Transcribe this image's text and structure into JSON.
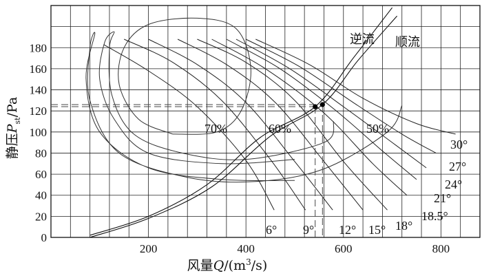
{
  "chart_data": {
    "type": "line",
    "xlabel_prefix": "风量",
    "xlabel_var": "Q",
    "xlabel_unit_pre": "/(m",
    "xlabel_unit_sup": "3",
    "xlabel_unit_post": "/s)",
    "ylabel_prefix": "静压",
    "ylabel_var": "P",
    "ylabel_sub": "st",
    "ylabel_unit": "/Pa",
    "xlim": [
      0,
      880
    ],
    "ylim": [
      0,
      220
    ],
    "x_ticks": [
      200,
      400,
      600,
      800
    ],
    "x_tick_labels": [
      "200",
      "400",
      "600",
      "800"
    ],
    "y_ticks": [
      0,
      20,
      40,
      60,
      80,
      100,
      120,
      140,
      160,
      180
    ],
    "y_tick_labels": [
      "0",
      "20",
      "40",
      "60",
      "80",
      "100",
      "120",
      "140",
      "160",
      "180"
    ],
    "grid": true,
    "blade_angle_curves": [
      {
        "name": "6°",
        "points": [
          [
            108,
            183
          ],
          [
            200,
            158
          ],
          [
            300,
            124
          ],
          [
            400,
            73
          ],
          [
            458,
            26
          ]
        ]
      },
      {
        "name": "9°",
        "points": [
          [
            150,
            188
          ],
          [
            250,
            166
          ],
          [
            350,
            130
          ],
          [
            450,
            74
          ],
          [
            522,
            26
          ]
        ]
      },
      {
        "name": "12°",
        "points": [
          [
            200,
            188
          ],
          [
            300,
            164
          ],
          [
            400,
            128
          ],
          [
            500,
            72
          ],
          [
            578,
            26
          ]
        ]
      },
      {
        "name": "15°",
        "points": [
          [
            260,
            188
          ],
          [
            360,
            164
          ],
          [
            460,
            128
          ],
          [
            560,
            72
          ],
          [
            640,
            26
          ]
        ]
      },
      {
        "name": "18°",
        "points": [
          [
            300,
            188
          ],
          [
            400,
            166
          ],
          [
            500,
            130
          ],
          [
            600,
            72
          ],
          [
            690,
            26
          ]
        ]
      },
      {
        "name": "18.5°",
        "points": [
          [
            330,
            188
          ],
          [
            440,
            160
          ],
          [
            560,
            118
          ],
          [
            660,
            70
          ],
          [
            730,
            40
          ]
        ]
      },
      {
        "name": "21°",
        "points": [
          [
            360,
            188
          ],
          [
            470,
            160
          ],
          [
            580,
            122
          ],
          [
            680,
            82
          ],
          [
            750,
            55
          ]
        ]
      },
      {
        "name": "24°",
        "points": [
          [
            380,
            188
          ],
          [
            490,
            160
          ],
          [
            600,
            124
          ],
          [
            700,
            90
          ],
          [
            770,
            66
          ]
        ]
      },
      {
        "name": "27°",
        "points": [
          [
            400,
            188
          ],
          [
            510,
            162
          ],
          [
            620,
            128
          ],
          [
            720,
            98
          ],
          [
            790,
            80
          ]
        ]
      },
      {
        "name": "30°",
        "points": [
          [
            420,
            188
          ],
          [
            530,
            164
          ],
          [
            640,
            132
          ],
          [
            750,
            108
          ],
          [
            830,
            98
          ]
        ]
      }
    ],
    "efficiency_contours": [
      {
        "name": "70%",
        "points": [
          [
            250,
            98
          ],
          [
            180,
            112
          ],
          [
            140,
            145
          ],
          [
            150,
            180
          ],
          [
            200,
            202
          ],
          [
            300,
            208
          ],
          [
            380,
            198
          ],
          [
            410,
            160
          ],
          [
            390,
            120
          ],
          [
            340,
            100
          ],
          [
            250,
            98
          ]
        ]
      },
      {
        "name": "60%",
        "points": [
          [
            500,
            74
          ],
          [
            350,
            70
          ],
          [
            200,
            80
          ],
          [
            130,
            112
          ],
          [
            100,
            150
          ],
          [
            110,
            185
          ],
          [
            130,
            195
          ],
          [
            120,
            180
          ],
          [
            125,
            135
          ],
          [
            170,
            98
          ],
          [
            270,
            80
          ],
          [
            400,
            74
          ],
          [
            560,
            90
          ],
          [
            580,
            110
          ]
        ]
      },
      {
        "name": "50%",
        "points": [
          [
            500,
            54
          ],
          [
            350,
            55
          ],
          [
            200,
            66
          ],
          [
            100,
            100
          ],
          [
            72,
            150
          ],
          [
            90,
            193
          ],
          [
            80,
            180
          ],
          [
            80,
            130
          ],
          [
            140,
            80
          ],
          [
            280,
            57
          ],
          [
            420,
            53
          ],
          [
            560,
            65
          ],
          [
            690,
            100
          ],
          [
            720,
            125
          ]
        ]
      }
    ],
    "system_curves": [
      {
        "name": "逆流",
        "points": [
          [
            80,
            2
          ],
          [
            200,
            20
          ],
          [
            320,
            50
          ],
          [
            430,
            95
          ],
          [
            542,
            124
          ],
          [
            620,
            170
          ],
          [
            700,
            218
          ]
        ]
      },
      {
        "name": "顺流",
        "points": [
          [
            80,
            0
          ],
          [
            200,
            18
          ],
          [
            330,
            48
          ],
          [
            450,
            96
          ],
          [
            557,
            126
          ],
          [
            630,
            168
          ],
          [
            710,
            210
          ]
        ]
      }
    ],
    "operating_points": [
      {
        "x": 542,
        "y": 124
      },
      {
        "x": 557,
        "y": 126
      }
    ],
    "reference_lines_y": [
      124,
      126
    ],
    "efficiency_labels": [
      "70%",
      "60%",
      "50%"
    ],
    "angle_labels": [
      "6°",
      "9°",
      "12°",
      "15°",
      "18°",
      "18.5°",
      "21°",
      "24°",
      "27°",
      "30°"
    ],
    "flow_labels": [
      "逆流",
      "顺流"
    ]
  }
}
